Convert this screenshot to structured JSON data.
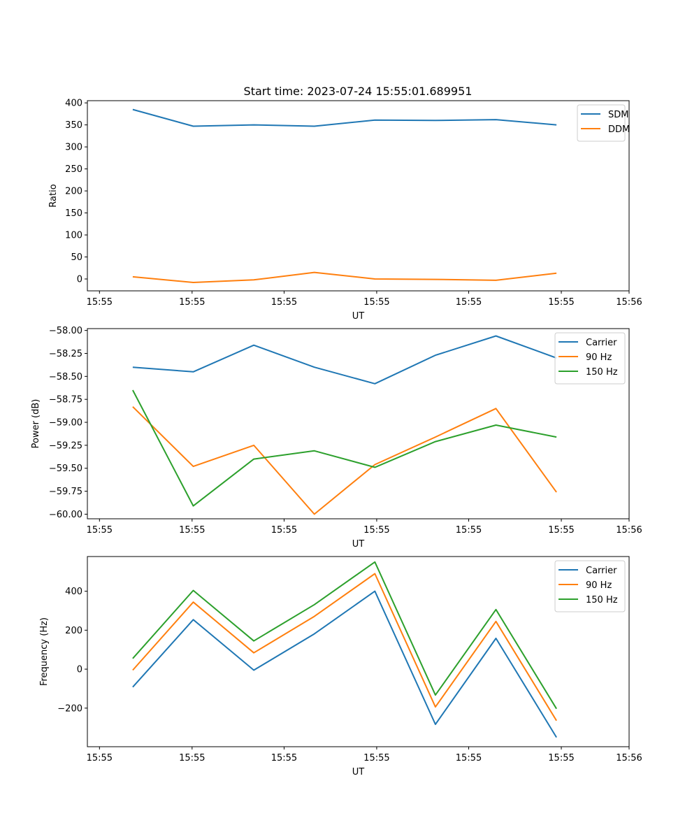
{
  "title": "Start time: 2023-07-24 15:55:01.689951",
  "chart_data": [
    {
      "type": "line",
      "ylabel": "Ratio",
      "xlabel": "UT",
      "x": [
        1,
        2,
        3,
        4,
        5,
        6,
        7,
        8
      ],
      "xlim": [
        0.25,
        9.2
      ],
      "xticks": [
        0.45,
        1.98,
        3.5,
        5.03,
        6.55,
        8.08,
        9.2
      ],
      "xticklabels": [
        "15:55",
        "15:55",
        "15:55",
        "15:55",
        "15:55",
        "15:55",
        "15:56"
      ],
      "ylim": [
        -27,
        405
      ],
      "yticks": [
        0,
        50,
        100,
        150,
        200,
        250,
        300,
        350,
        400
      ],
      "yticklabels": [
        "0",
        "50",
        "100",
        "150",
        "200",
        "250",
        "300",
        "350",
        "400"
      ],
      "legend": "top-right",
      "series": [
        {
          "name": "SDM",
          "color": "#1f77b4",
          "values": [
            385,
            347,
            350,
            347,
            361,
            360,
            362,
            350
          ]
        },
        {
          "name": "DDM",
          "color": "#ff7f0e",
          "values": [
            5,
            -8,
            -2,
            15,
            0,
            -1,
            -3,
            13
          ]
        }
      ]
    },
    {
      "type": "line",
      "ylabel": "Power (dB)",
      "xlabel": "UT",
      "x": [
        1,
        2,
        3,
        4,
        5,
        6,
        7,
        8
      ],
      "xlim": [
        0.25,
        9.2
      ],
      "xticks": [
        0.45,
        1.98,
        3.5,
        5.03,
        6.55,
        8.08,
        9.2
      ],
      "xticklabels": [
        "15:55",
        "15:55",
        "15:55",
        "15:55",
        "15:55",
        "15:55",
        "15:56"
      ],
      "ylim": [
        -60.05,
        -57.98
      ],
      "yticks": [
        -60.0,
        -59.75,
        -59.5,
        -59.25,
        -59.0,
        -58.75,
        -58.5,
        -58.25,
        -58.0
      ],
      "yticklabels": [
        "−60.00",
        "−59.75",
        "−59.50",
        "−59.25",
        "−59.00",
        "−58.75",
        "−58.50",
        "−58.25",
        "−58.00"
      ],
      "legend": "top-right",
      "series": [
        {
          "name": "Carrier",
          "color": "#1f77b4",
          "values": [
            -58.4,
            -58.45,
            -58.16,
            -58.4,
            -58.58,
            -58.27,
            -58.06,
            -58.3
          ]
        },
        {
          "name": "90 Hz",
          "color": "#ff7f0e",
          "values": [
            -58.83,
            -59.48,
            -59.25,
            -60.0,
            -59.46,
            -59.16,
            -58.85,
            -59.76
          ]
        },
        {
          "name": "150 Hz",
          "color": "#2ca02c",
          "values": [
            -58.65,
            -59.91,
            -59.4,
            -59.31,
            -59.49,
            -59.21,
            -59.03,
            -59.16
          ]
        }
      ]
    },
    {
      "type": "line",
      "ylabel": "Frequency (Hz)",
      "xlabel": "UT",
      "x": [
        1,
        2,
        3,
        4,
        5,
        6,
        7,
        8
      ],
      "xlim": [
        0.25,
        9.2
      ],
      "xticks": [
        0.45,
        1.98,
        3.5,
        5.03,
        6.55,
        8.08,
        9.2
      ],
      "xticklabels": [
        "15:55",
        "15:55",
        "15:55",
        "15:55",
        "15:55",
        "15:55",
        "15:56"
      ],
      "ylim": [
        -398,
        578
      ],
      "yticks": [
        -200,
        0,
        200,
        400
      ],
      "yticklabels": [
        "−200",
        "0",
        "200",
        "400"
      ],
      "legend": "top-right",
      "series": [
        {
          "name": "Carrier",
          "color": "#1f77b4",
          "values": [
            -92,
            254,
            -5,
            181,
            400,
            -283,
            158,
            -350
          ]
        },
        {
          "name": "90 Hz",
          "color": "#ff7f0e",
          "values": [
            -5,
            344,
            84,
            271,
            490,
            -194,
            245,
            -264
          ]
        },
        {
          "name": "150 Hz",
          "color": "#2ca02c",
          "values": [
            55,
            404,
            145,
            331,
            550,
            -133,
            306,
            -203
          ]
        }
      ]
    }
  ]
}
